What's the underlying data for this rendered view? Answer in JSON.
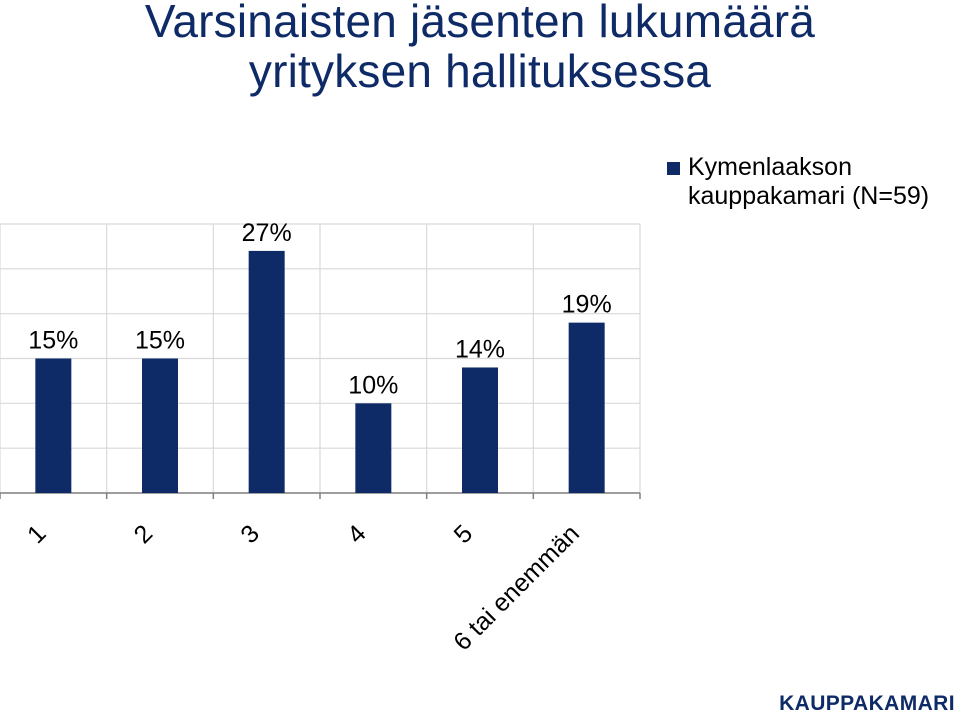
{
  "title_lines": [
    "Varsinaisten jäsenten lukumäärä",
    "yrityksen hallituksessa"
  ],
  "logo_text": "KAUPPAKAMARI",
  "legend": {
    "label_lines": [
      "Kymenlaakson",
      "kauppakamari (N=59)"
    ]
  },
  "colors": {
    "bar": "#0f2b67",
    "grid": "#d9d9d9",
    "axis": "#808080",
    "title": "#0f2b67"
  },
  "chart_data": {
    "type": "bar",
    "categories": [
      "1",
      "2",
      "3",
      "4",
      "5",
      "6 tai enemmän"
    ],
    "series": [
      {
        "name": "Kymenlaakson kauppakamari (N=59)",
        "values": [
          15,
          15,
          27,
          10,
          14,
          19
        ]
      }
    ],
    "data_labels": [
      "15%",
      "15%",
      "27%",
      "10%",
      "14%",
      "19%"
    ],
    "ylim": [
      0,
      30
    ],
    "grid": true,
    "legend_position": "top-right",
    "xlabel": "",
    "ylabel": ""
  }
}
